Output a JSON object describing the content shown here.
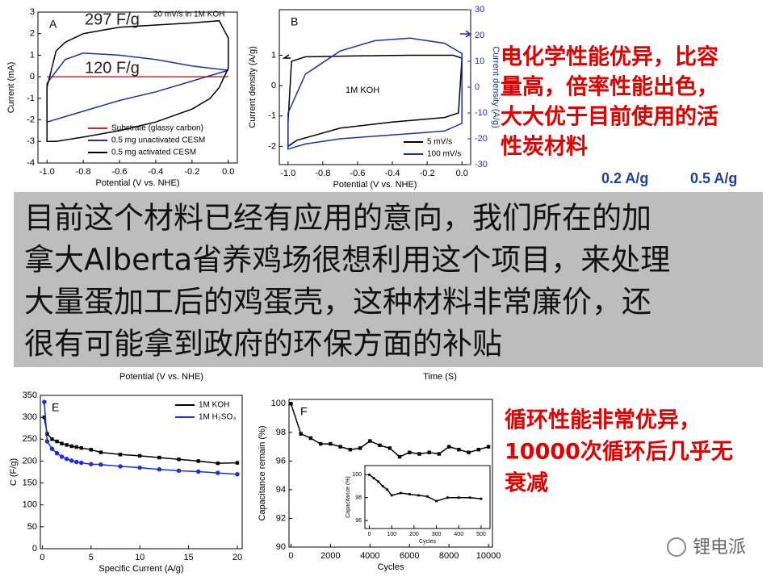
{
  "chart_data": [
    {
      "type": "line",
      "panel_label": "A",
      "annotations": [
        "297 F/g",
        "120 F/g",
        "20 mV/s in 1M KOH"
      ],
      "x_label": "Potential (V vs. NHE)",
      "y_label": "Current (mA)",
      "xlim": [
        -1.05,
        0.05
      ],
      "ylim": [
        -4,
        3
      ],
      "xticks": [
        {
          "value": -1,
          "label": "-1.0"
        },
        -0.8,
        -0.6,
        -0.4,
        -0.2,
        {
          "value": 0,
          "label": "0.0"
        }
      ],
      "yticks": [
        -4,
        -3,
        -2,
        -1,
        0,
        1,
        2,
        3
      ],
      "legend": "lower right",
      "series": [
        {
          "name": "Substrate (glassy carbon)",
          "color": "#e02020",
          "x": [
            -1.0,
            0.0
          ],
          "values": [
            0,
            0
          ]
        },
        {
          "name": "0.5 mg unactivated CESM",
          "color": "#1f2fa8",
          "x": [
            -1.0,
            -0.9,
            -0.8,
            -0.6,
            -0.4,
            -0.2,
            0.0,
            -0.2,
            -0.4,
            -0.6,
            -0.8,
            -1.0,
            -1.0
          ],
          "values": [
            -0.3,
            0.8,
            1.1,
            1.0,
            0.8,
            0.5,
            0.3,
            -0.2,
            -0.7,
            -1.1,
            -1.6,
            -2.1,
            -0.3
          ]
        },
        {
          "name": "0.5 mg activated CESM",
          "color": "#000000",
          "x": [
            -1.0,
            -0.95,
            -0.9,
            -0.8,
            -0.6,
            -0.4,
            -0.2,
            -0.05,
            0.0,
            0.0,
            -0.05,
            -0.1,
            -0.2,
            -0.4,
            -0.6,
            -0.8,
            -0.95,
            -1.0,
            -1.0
          ],
          "values": [
            -0.5,
            1.2,
            1.6,
            2.0,
            2.3,
            2.4,
            2.5,
            2.6,
            1.8,
            0.4,
            -0.5,
            -1.0,
            -1.5,
            -2.1,
            -2.5,
            -2.8,
            -3.0,
            -3.0,
            -0.5
          ]
        }
      ]
    },
    {
      "type": "line",
      "panel_label": "B",
      "annotations": [
        "1M KOH"
      ],
      "x_label": "Potential (V vs. NHE)",
      "y_label": "Current density (A/g)",
      "y2_label": "Current density (A/g)",
      "xlim": [
        -1.05,
        0.05
      ],
      "ylim": [
        -2.6,
        2.5
      ],
      "y2lim": [
        -30,
        30
      ],
      "xticks": [
        {
          "value": -1,
          "label": "-1.0"
        },
        -0.8,
        -0.6,
        -0.4,
        -0.2,
        {
          "value": 0,
          "label": "0.0"
        }
      ],
      "yticks": [
        -2,
        -1,
        0,
        1
      ],
      "y2ticks": [
        -30,
        -20,
        -10,
        0,
        10,
        20,
        30
      ],
      "y2color": "#1f2fa8",
      "legend": "lower right",
      "series": [
        {
          "name": "5 mV/s",
          "color": "#000000",
          "x": [
            -1.0,
            -0.98,
            -0.9,
            -0.6,
            -0.3,
            -0.05,
            0.0,
            -0.02,
            -0.1,
            -0.4,
            -0.7,
            -0.95,
            -1.0,
            -1.0
          ],
          "values": [
            -1.2,
            0.8,
            0.95,
            0.98,
            1.0,
            1.0,
            0.9,
            -0.9,
            -1.05,
            -1.2,
            -1.4,
            -1.8,
            -2.0,
            -1.2
          ]
        },
        {
          "name": "100 mV/s",
          "color": "#1f2fa8",
          "axis": "y2",
          "x": [
            -1.0,
            -0.9,
            -0.7,
            -0.5,
            -0.3,
            -0.1,
            0.0,
            0.0,
            -0.1,
            -0.3,
            -0.5,
            -0.7,
            -0.9,
            -1.0,
            -1.0
          ],
          "values": [
            -10,
            5,
            14,
            18,
            19,
            17,
            13,
            -14,
            -17,
            -18,
            -19,
            -20,
            -22,
            -24,
            -10
          ]
        }
      ]
    },
    {
      "type": "line",
      "panel_label": "E",
      "annotations": [],
      "x_label": "Specific Current (A/g)",
      "y_label": "C (F/g)",
      "xlim": [
        -0.2,
        20.5
      ],
      "ylim": [
        0,
        350
      ],
      "xticks": [
        0,
        5,
        10,
        15,
        20
      ],
      "yticks": [
        0,
        50,
        100,
        150,
        200,
        250,
        300,
        350
      ],
      "legend": "upper right",
      "series": [
        {
          "name": "1M KOH",
          "color": "#000000",
          "marker": "square",
          "x": [
            0.2,
            0.5,
            1,
            1.5,
            2,
            2.5,
            3,
            3.5,
            4,
            5,
            6,
            8,
            10,
            12,
            14,
            16,
            18,
            20
          ],
          "values": [
            300,
            262,
            250,
            245,
            240,
            237,
            234,
            232,
            230,
            226,
            220,
            215,
            212,
            208,
            204,
            200,
            195,
            196
          ]
        },
        {
          "name": "1M H₂SO₄",
          "color": "#1f2fd8",
          "marker": "circle",
          "x": [
            0.2,
            0.5,
            1,
            1.5,
            2,
            2.5,
            3,
            3.5,
            4,
            5,
            6,
            8,
            10,
            12,
            14,
            16,
            18,
            20
          ],
          "values": [
            335,
            245,
            228,
            218,
            210,
            205,
            201,
            198,
            196,
            193,
            192,
            188,
            185,
            181,
            178,
            176,
            173,
            170
          ]
        }
      ]
    },
    {
      "type": "line",
      "panel_label": "F",
      "annotations": [],
      "x_label": "Cycles",
      "y_label": "Capacitance remain (%)",
      "xlim": [
        -100,
        10200
      ],
      "ylim": [
        90,
        100.3
      ],
      "xticks": [
        0,
        2000,
        4000,
        6000,
        8000,
        10000
      ],
      "yticks": [
        90,
        92,
        94,
        96,
        98,
        100
      ],
      "series": [
        {
          "name": null,
          "color": "#000000",
          "marker": "square",
          "x": [
            0,
            500,
            1000,
            1500,
            2000,
            2500,
            3000,
            3500,
            4000,
            4500,
            5000,
            5500,
            6000,
            6500,
            7000,
            7500,
            8000,
            8500,
            9000,
            9500,
            10000
          ],
          "values": [
            100,
            97.9,
            97.6,
            97.2,
            97.2,
            97.0,
            96.8,
            96.9,
            97.4,
            97.1,
            96.9,
            96.3,
            96.6,
            96.5,
            96.6,
            96.5,
            97.0,
            96.8,
            96.6,
            96.8,
            97.0
          ]
        }
      ],
      "inset": {
        "type": "line",
        "x_label": "Cycles",
        "y_label": "Capacitance (%)",
        "xlim": [
          -20,
          540
        ],
        "ylim": [
          95.3,
          100.8
        ],
        "xticks": [
          0,
          100,
          200,
          300,
          400,
          500
        ],
        "yticks": [
          96,
          98,
          100
        ],
        "series": [
          {
            "name": null,
            "color": "#000000",
            "marker": "square",
            "x": [
              0,
              20,
              40,
              60,
              80,
              100,
              140,
              180,
              220,
              260,
              300,
              350,
              400,
              450,
              500
            ],
            "values": [
              100,
              99.7,
              99.4,
              99,
              98.7,
              98.2,
              98.4,
              98.3,
              98.2,
              98.1,
              97.7,
              98.0,
              98,
              98,
              97.9
            ]
          }
        ]
      }
    }
  ],
  "hidden_panels": {
    "x_labels": [
      "Potential (V vs. NHE)",
      "Time (S)"
    ]
  },
  "notes": {
    "performance": [
      "电化学性能优异，比容",
      "量高，倍率性能出色，",
      "大大优于目前使用的活",
      "性炭材料"
    ],
    "rates": [
      "0.2 A/g",
      "0.5 A/g"
    ],
    "cycling": [
      "循环性能非常优异，",
      "10000次循环后几乎无",
      "衰减"
    ],
    "overlay": [
      "目前这个材料已经有应用的意向，我们所在的加",
      "拿大Alberta省养鸡场很想利用这个项目，来处理",
      "大量蛋加工后的鸡蛋壳，这种材料非常廉价，还",
      "很有可能拿到政府的环保方面的补贴"
    ],
    "watermark": "锂电派"
  }
}
